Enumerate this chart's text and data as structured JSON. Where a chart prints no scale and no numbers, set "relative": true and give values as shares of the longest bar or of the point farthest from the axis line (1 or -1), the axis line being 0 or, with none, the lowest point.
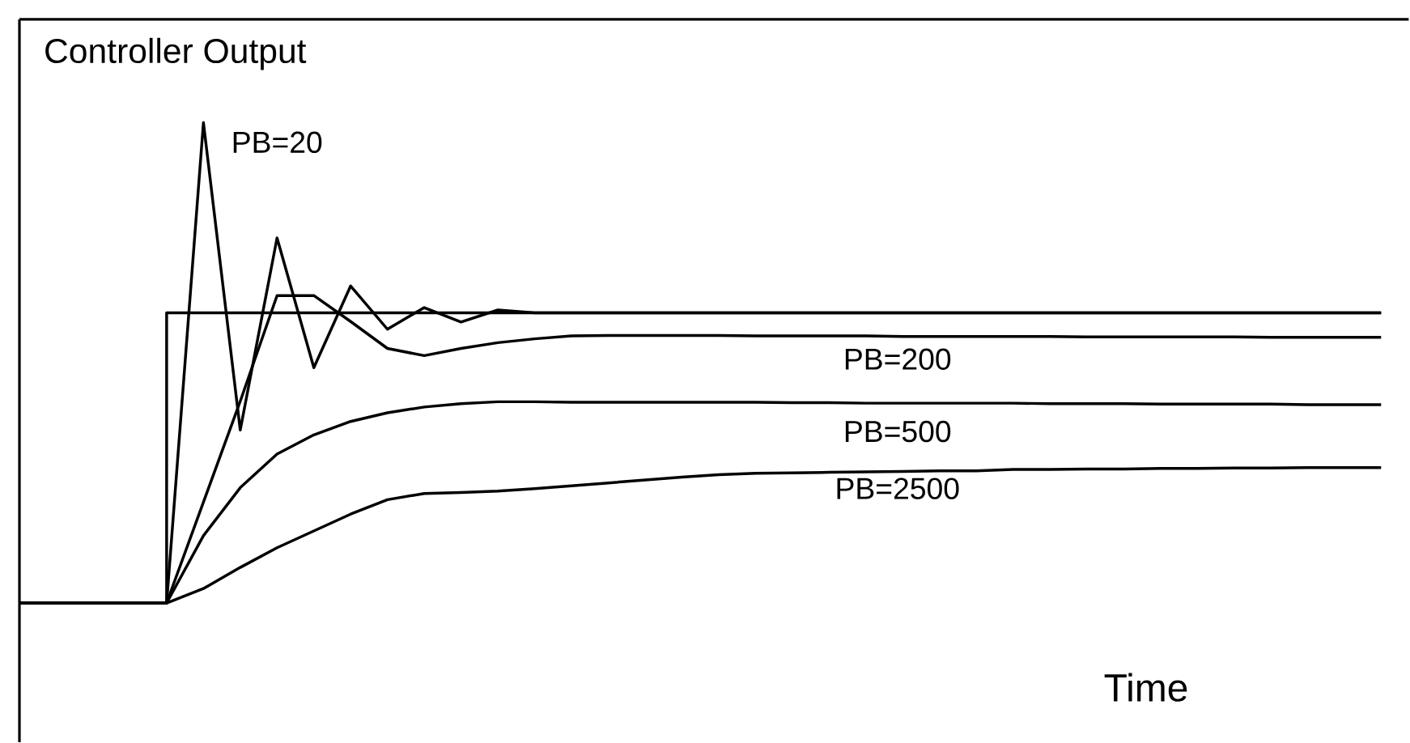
{
  "chart_data": {
    "type": "line",
    "relative": true,
    "ylabel": "Controller Output",
    "xlabel": "Time",
    "marker": "none",
    "line_style": "solid",
    "categories": [
      null,
      null,
      null,
      null,
      null,
      null,
      null,
      null,
      null,
      null,
      null,
      null,
      null,
      null,
      null,
      null,
      null,
      null,
      null,
      null,
      null,
      null,
      null,
      null,
      null,
      null,
      null,
      null,
      null,
      null,
      null,
      null,
      null,
      null,
      null,
      null,
      null,
      null
    ],
    "series": [
      {
        "type": "step",
        "color": "#000000",
        "values": [
          0,
          0,
          0,
          0,
          0.604,
          0.604,
          0.604,
          0.604,
          0.604,
          0.604,
          0.604,
          0.604,
          0.604,
          0.604,
          0.604,
          0.604,
          0.604,
          0.604,
          0.604,
          0.604,
          0.604,
          0.604,
          0.604,
          0.604,
          0.604,
          0.604,
          0.604,
          0.604,
          0.604,
          0.604,
          0.604,
          0.604,
          0.604,
          0.604,
          0.604,
          0.604,
          0.604,
          0.604
        ]
      },
      {
        "name": "PB=20",
        "color": "#000000",
        "values": [
          0,
          0,
          0,
          0,
          0,
          1,
          0.36,
          0.76,
          0.49,
          0.66,
          0.57,
          0.615,
          0.585,
          0.61,
          0.604,
          0.604,
          0.604,
          0.604,
          0.604,
          0.604,
          0.604,
          0.604,
          0.604,
          0.604,
          0.604,
          0.604,
          0.604,
          0.604,
          0.604,
          0.604,
          0.604,
          0.604,
          0.604,
          0.604,
          0.604,
          0.604,
          0.604,
          0.604
        ]
      },
      {
        "name": "PB=200",
        "color": "#000000",
        "values": [
          0,
          0,
          0,
          0,
          0,
          0.21,
          0.42,
          0.64,
          0.64,
          0.586,
          0.53,
          0.515,
          0.53,
          0.542,
          0.55,
          0.556,
          0.557,
          0.557,
          0.557,
          0.557,
          0.556,
          0.556,
          0.556,
          0.556,
          0.555,
          0.555,
          0.555,
          0.555,
          0.555,
          0.554,
          0.554,
          0.554,
          0.554,
          0.554,
          0.553,
          0.553,
          0.553,
          0.553
        ]
      },
      {
        "name": "PB=500",
        "color": "#000000",
        "values": [
          0,
          0,
          0,
          0,
          0,
          0.14,
          0.24,
          0.31,
          0.35,
          0.378,
          0.396,
          0.408,
          0.415,
          0.419,
          0.419,
          0.418,
          0.418,
          0.418,
          0.418,
          0.418,
          0.418,
          0.417,
          0.417,
          0.416,
          0.416,
          0.416,
          0.416,
          0.416,
          0.415,
          0.415,
          0.415,
          0.414,
          0.414,
          0.414,
          0.414,
          0.413,
          0.413,
          0.413
        ]
      },
      {
        "name": "PB=2500",
        "color": "#000000",
        "values": [
          0,
          0,
          0,
          0,
          0,
          0.03,
          0.074,
          0.115,
          0.15,
          0.185,
          0.215,
          0.228,
          0.23,
          0.233,
          0.238,
          0.244,
          0.25,
          0.256,
          0.262,
          0.267,
          0.27,
          0.271,
          0.272,
          0.273,
          0.274,
          0.275,
          0.275,
          0.278,
          0.278,
          0.279,
          0.279,
          0.28,
          0.28,
          0.281,
          0.281,
          0.282,
          0.282,
          0.282
        ]
      }
    ]
  }
}
